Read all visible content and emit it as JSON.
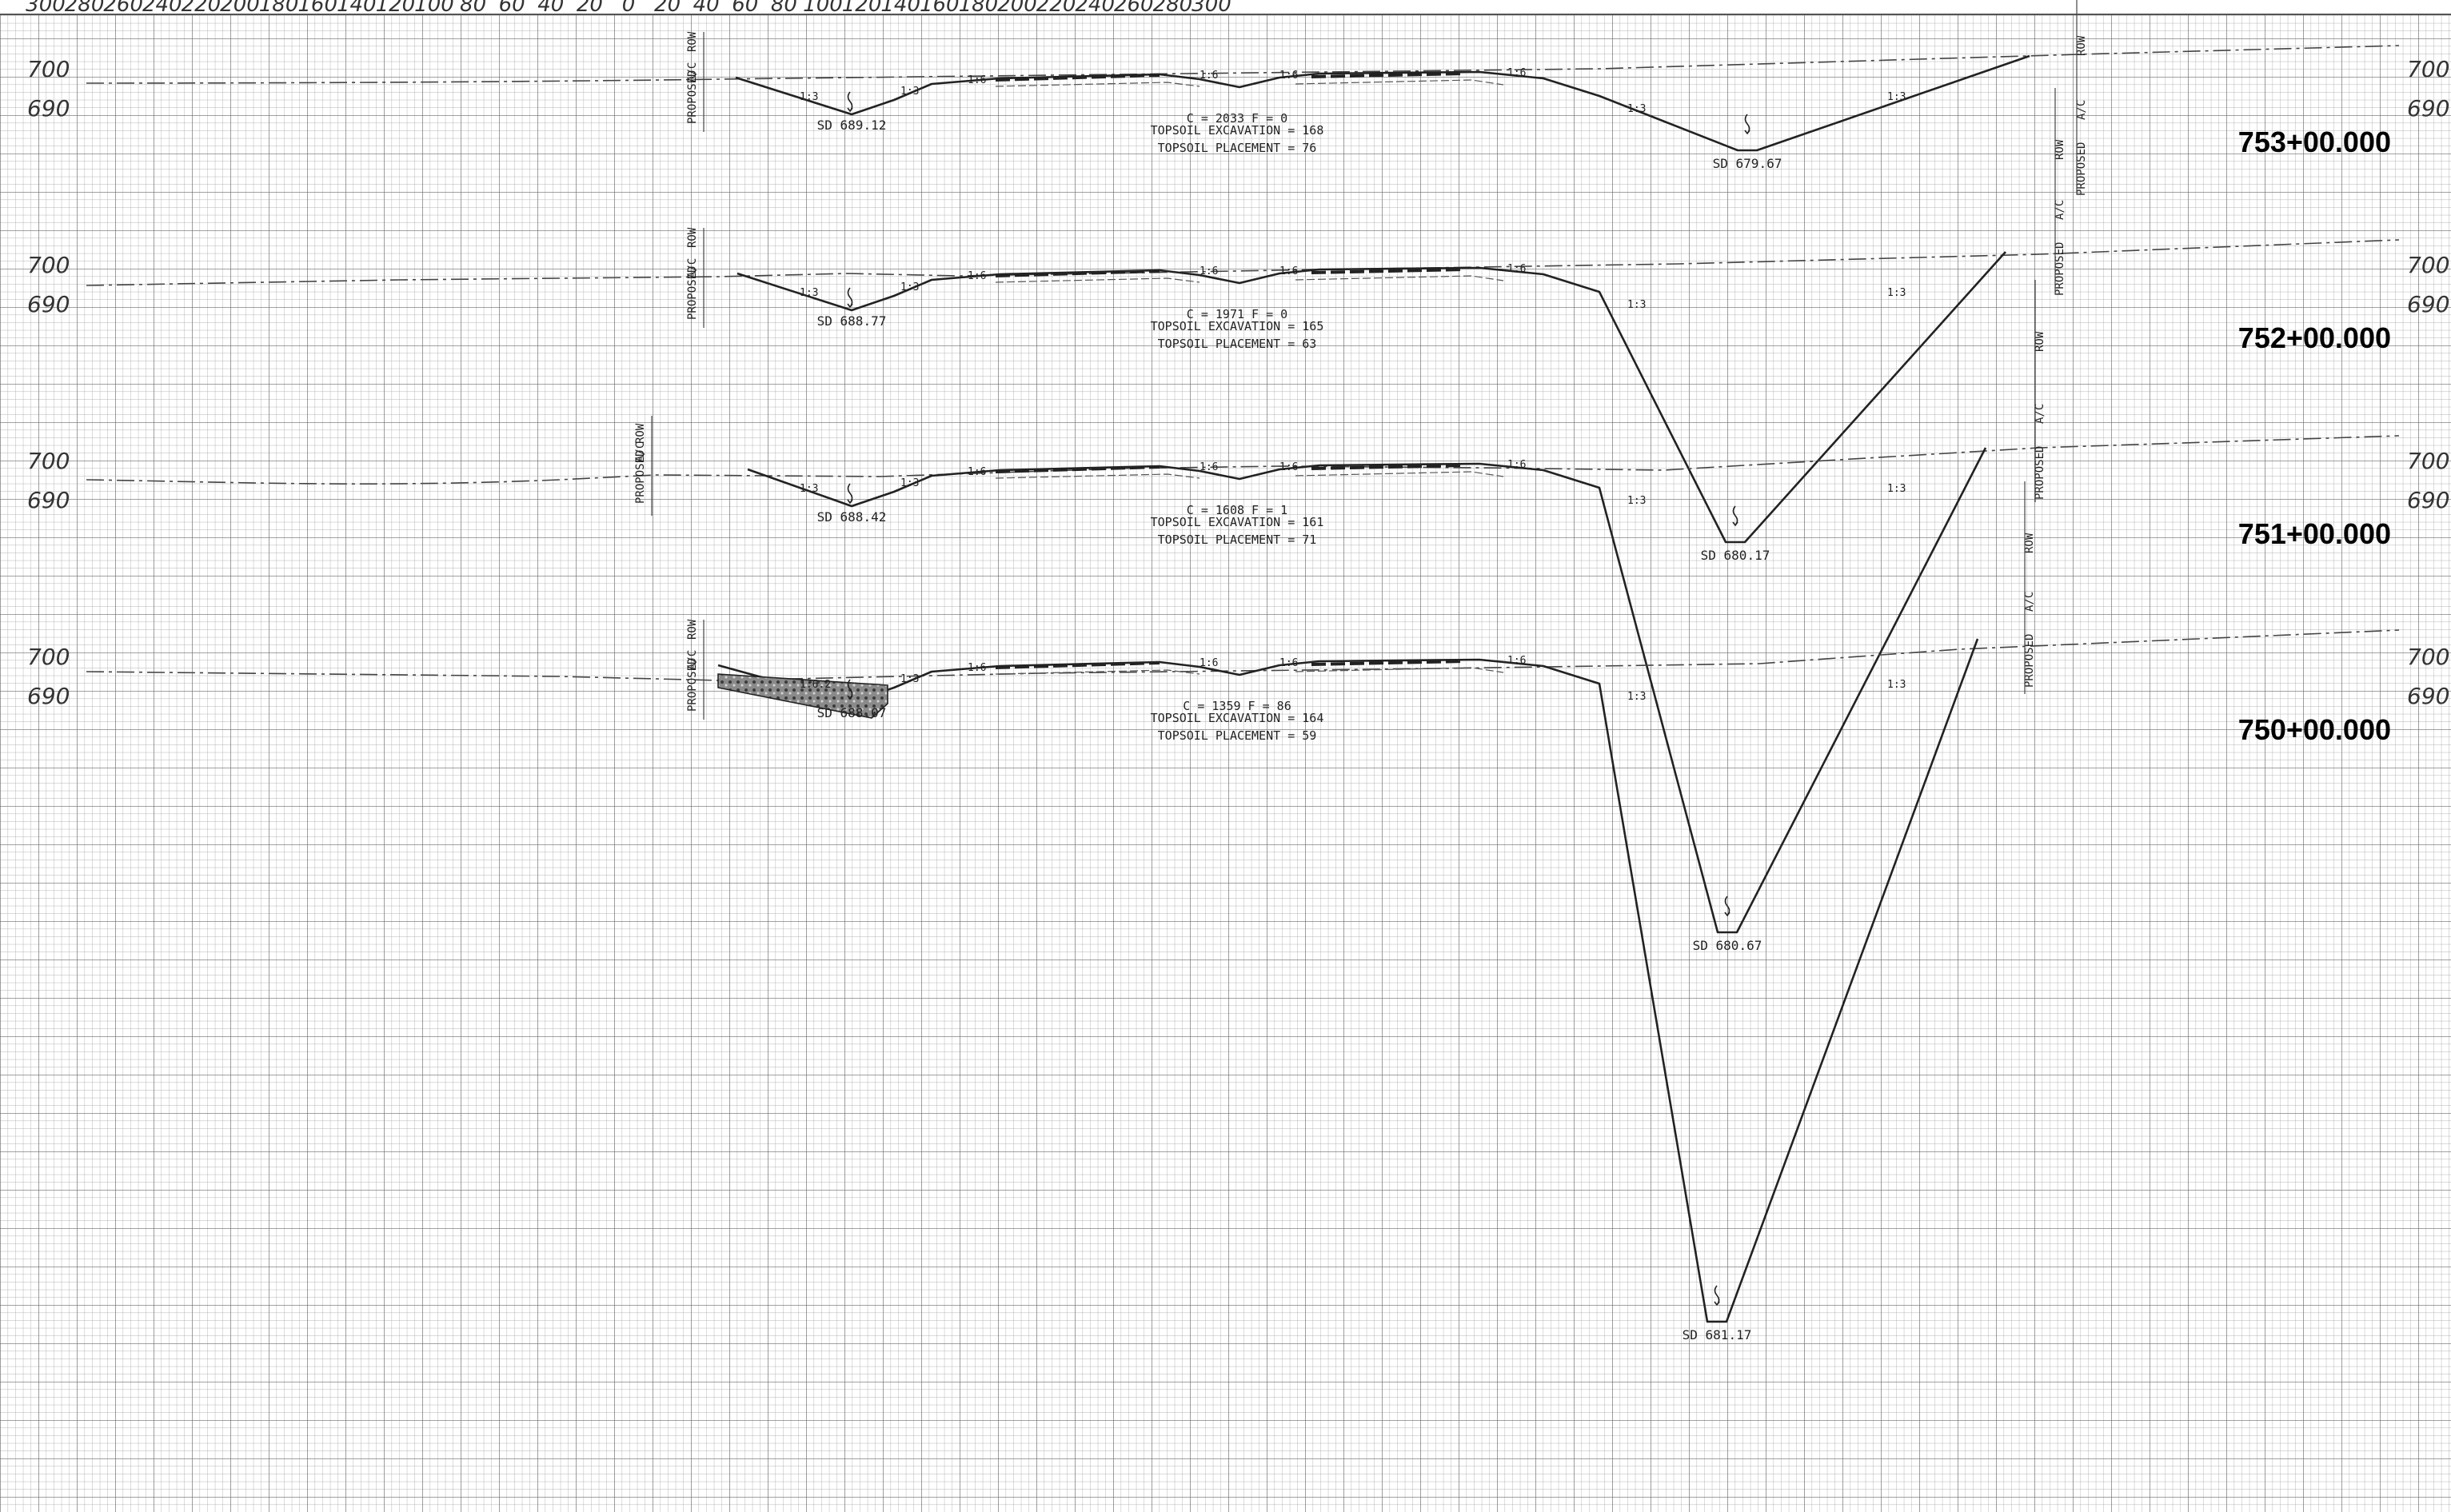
{
  "offset_axis": {
    "labels": [
      "300",
      "280",
      "260",
      "240",
      "220",
      "200",
      "180",
      "160",
      "140",
      "120",
      "100",
      "80",
      "60",
      "40",
      "20",
      "0",
      "20",
      "40",
      "60",
      "80",
      "100",
      "120",
      "140",
      "160",
      "180",
      "200",
      "220",
      "240",
      "260",
      "280",
      "300"
    ]
  },
  "sections": [
    {
      "station": "753+00.000",
      "elev_high": "700",
      "elev_low": "690",
      "left_label": "PROPOSED",
      "left_ac": "A/C",
      "left_row": "ROW",
      "right_label": "PROPOSED",
      "right_ac": "A/C",
      "right_row": "ROW",
      "note_cf": "C = 2033   F = 0",
      "note_exc": "TOPSOIL EXCAVATION = 168",
      "note_plc": "TOPSOIL PLACEMENT = 76",
      "sd_left": "SD 689.12",
      "sd_right": "SD 679.67",
      "slopes": [
        "1:3",
        "1:3",
        "1:6",
        "1:6",
        "1:6",
        "1:6",
        "1:3",
        "1:3"
      ]
    },
    {
      "station": "752+00.000",
      "elev_high": "700",
      "elev_low": "690",
      "left_label": "PROPOSED",
      "left_ac": "A/C",
      "left_row": "ROW",
      "right_label": "PROPOSED",
      "right_ac": "A/C",
      "right_row": "ROW",
      "note_cf": "C = 1971   F = 0",
      "note_exc": "TOPSOIL EXCAVATION = 165",
      "note_plc": "TOPSOIL PLACEMENT = 63",
      "sd_left": "SD 688.77",
      "sd_right": "SD 680.17",
      "slopes": [
        "1:3",
        "1:3",
        "1:6",
        "1:6",
        "1:6",
        "1:6",
        "1:3",
        "1:3"
      ]
    },
    {
      "station": "751+00.000",
      "elev_high": "700",
      "elev_low": "690",
      "left_label": "PROPOSED",
      "left_ac": "A/C",
      "left_row": "ROW",
      "right_label": "PROPOSED",
      "right_ac": "A/C",
      "right_row": "ROW",
      "note_cf": "C = 1608   F = 1",
      "note_exc": "TOPSOIL EXCAVATION = 161",
      "note_plc": "TOPSOIL PLACEMENT = 71",
      "sd_left": "SD 688.42",
      "sd_right": "SD 680.67",
      "slopes": [
        "1:3",
        "1:3",
        "1:6",
        "1:6",
        "1:6",
        "1:6",
        "1:3",
        "1:3"
      ]
    },
    {
      "station": "750+00.000",
      "elev_high": "700",
      "elev_low": "690",
      "left_label": "PROPOSED",
      "left_ac": "A/C",
      "left_row": "ROW",
      "right_label": "PROPOSED",
      "right_ac": "A/C",
      "right_row": "ROW",
      "note_cf": "C = 1359   F = 86",
      "note_exc": "TOPSOIL EXCAVATION = 164",
      "note_plc": "TOPSOIL PLACEMENT = 59",
      "sd_left": "SD 688.07",
      "sd_right": "SD 681.17",
      "slopes": [
        "1:6.2",
        "1:3",
        "1:6",
        "1:6",
        "1:6",
        "1:6",
        "1:3",
        "1:3"
      ]
    }
  ]
}
